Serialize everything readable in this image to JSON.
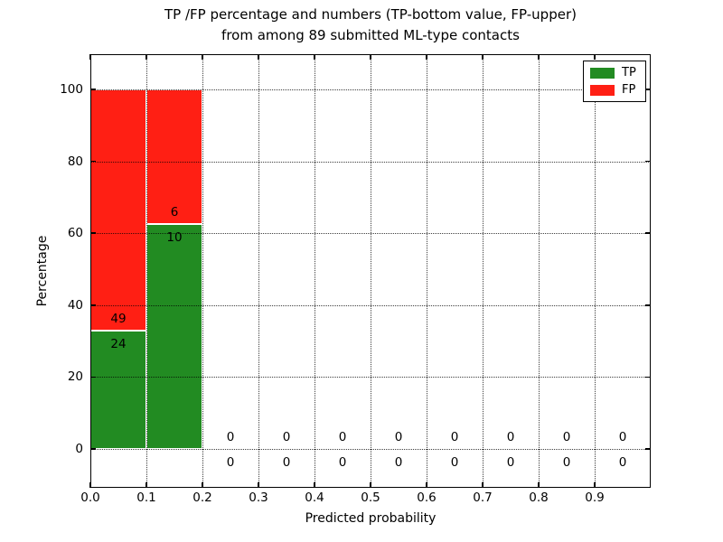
{
  "chart_data": {
    "type": "bar",
    "stacked": true,
    "title": "TP /FP percentage and numbers (TP-bottom value, FP-upper)\nfrom among 89 submitted ML-type contacts",
    "title_lines": [
      "TP /FP percentage and numbers (TP-bottom value, FP-upper)",
      "from among 89 submitted ML-type contacts"
    ],
    "xlabel": "Predicted probability",
    "ylabel": "Percentage",
    "total_submitted_contacts": 89,
    "xlim": [
      0.0,
      1.0
    ],
    "ylim": [
      -10.8,
      109.8
    ],
    "bin_width": 0.1,
    "grid": {
      "style": "dotted",
      "axis": "both"
    },
    "xticks": [
      {
        "value": 0.0,
        "label": "0.0"
      },
      {
        "value": 0.1,
        "label": "0.1"
      },
      {
        "value": 0.2,
        "label": "0.2"
      },
      {
        "value": 0.3,
        "label": "0.3"
      },
      {
        "value": 0.4,
        "label": "0.4"
      },
      {
        "value": 0.5,
        "label": "0.5"
      },
      {
        "value": 0.6,
        "label": "0.6"
      },
      {
        "value": 0.7,
        "label": "0.7"
      },
      {
        "value": 0.8,
        "label": "0.8"
      },
      {
        "value": 0.9,
        "label": "0.9"
      }
    ],
    "yticks": [
      {
        "value": 0,
        "label": "0"
      },
      {
        "value": 20,
        "label": "20"
      },
      {
        "value": 40,
        "label": "40"
      },
      {
        "value": 60,
        "label": "60"
      },
      {
        "value": 80,
        "label": "80"
      },
      {
        "value": 100,
        "label": "100"
      }
    ],
    "series": [
      {
        "name": "TP",
        "color": "#228b22"
      },
      {
        "name": "FP",
        "color": "#ff1f14"
      }
    ],
    "bins": [
      {
        "x_start": 0.0,
        "x_end": 0.1,
        "tp_count": 24,
        "fp_count": 49,
        "tp_pct": 32.9,
        "fp_pct": 67.1
      },
      {
        "x_start": 0.1,
        "x_end": 0.2,
        "tp_count": 10,
        "fp_count": 6,
        "tp_pct": 62.5,
        "fp_pct": 37.5
      },
      {
        "x_start": 0.2,
        "x_end": 0.3,
        "tp_count": 0,
        "fp_count": 0,
        "tp_pct": 0,
        "fp_pct": 0
      },
      {
        "x_start": 0.3,
        "x_end": 0.4,
        "tp_count": 0,
        "fp_count": 0,
        "tp_pct": 0,
        "fp_pct": 0
      },
      {
        "x_start": 0.4,
        "x_end": 0.5,
        "tp_count": 0,
        "fp_count": 0,
        "tp_pct": 0,
        "fp_pct": 0
      },
      {
        "x_start": 0.5,
        "x_end": 0.6,
        "tp_count": 0,
        "fp_count": 0,
        "tp_pct": 0,
        "fp_pct": 0
      },
      {
        "x_start": 0.6,
        "x_end": 0.7,
        "tp_count": 0,
        "fp_count": 0,
        "tp_pct": 0,
        "fp_pct": 0
      },
      {
        "x_start": 0.7,
        "x_end": 0.8,
        "tp_count": 0,
        "fp_count": 0,
        "tp_pct": 0,
        "fp_pct": 0
      },
      {
        "x_start": 0.8,
        "x_end": 0.9,
        "tp_count": 0,
        "fp_count": 0,
        "tp_pct": 0,
        "fp_pct": 0
      },
      {
        "x_start": 0.9,
        "x_end": 1.0,
        "tp_count": 0,
        "fp_count": 0,
        "tp_pct": 0,
        "fp_pct": 0
      }
    ],
    "legend": {
      "position": "upper right",
      "entries": [
        {
          "label": "TP",
          "color": "#228b22"
        },
        {
          "label": "FP",
          "color": "#ff1f14"
        }
      ]
    }
  },
  "colors": {
    "background": "#ffffff",
    "axis": "#000000",
    "grid": "#000000",
    "bar_edge": "#ffffff",
    "text": "#000000"
  }
}
